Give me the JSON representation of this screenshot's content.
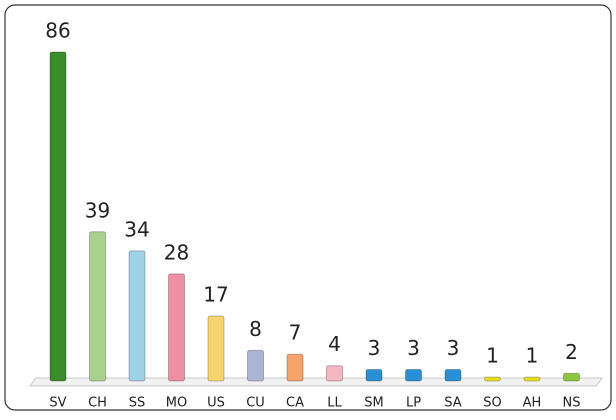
{
  "chart_data": {
    "type": "bar",
    "categories": [
      "SV",
      "CH",
      "SS",
      "MO",
      "US",
      "CU",
      "CA",
      "LL",
      "SM",
      "LP",
      "SA",
      "SO",
      "AH",
      "NS"
    ],
    "values": [
      86,
      39,
      34,
      28,
      17,
      8,
      7,
      4,
      3,
      3,
      3,
      1,
      1,
      2
    ],
    "colors": [
      "#3b8c2c",
      "#a9d18e",
      "#9fd2e6",
      "#ef8fa3",
      "#f6d56f",
      "#a9b5d1",
      "#f5a46c",
      "#f4b6c0",
      "#2b8fd6",
      "#2b8fd6",
      "#2b8fd6",
      "#e6df1e",
      "#e6df1e",
      "#8cc63e"
    ]
  }
}
